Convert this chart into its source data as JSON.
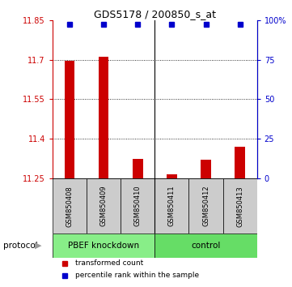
{
  "title": "GDS5178 / 200850_s_at",
  "samples": [
    "GSM850408",
    "GSM850409",
    "GSM850410",
    "GSM850411",
    "GSM850412",
    "GSM850413"
  ],
  "bar_values": [
    11.695,
    11.71,
    11.325,
    11.265,
    11.32,
    11.37
  ],
  "percentile_y": [
    11.835,
    11.835,
    11.835,
    11.835,
    11.835,
    11.835
  ],
  "ylim": [
    11.25,
    11.85
  ],
  "yticks_left": [
    11.25,
    11.4,
    11.55,
    11.7,
    11.85
  ],
  "yticks_right": [
    0,
    25,
    50,
    75,
    100
  ],
  "yticks_right_labels": [
    "0",
    "25",
    "50",
    "75",
    "100%"
  ],
  "bar_color": "#cc0000",
  "percentile_color": "#0000cc",
  "groups": [
    {
      "label": "PBEF knockdown",
      "samples": [
        0,
        1,
        2
      ],
      "color": "#88ee88"
    },
    {
      "label": "control",
      "samples": [
        3,
        4,
        5
      ],
      "color": "#66dd66"
    }
  ],
  "group_header": "protocol",
  "legend_items": [
    {
      "color": "#cc0000",
      "label": "transformed count"
    },
    {
      "color": "#0000cc",
      "label": "percentile rank within the sample"
    }
  ],
  "dotted_yticks": [
    11.7,
    11.55,
    11.4
  ],
  "bar_bottom": 11.25,
  "background_color": "#ffffff",
  "group_row_color": "#cccccc",
  "arrow_color": "#999999"
}
